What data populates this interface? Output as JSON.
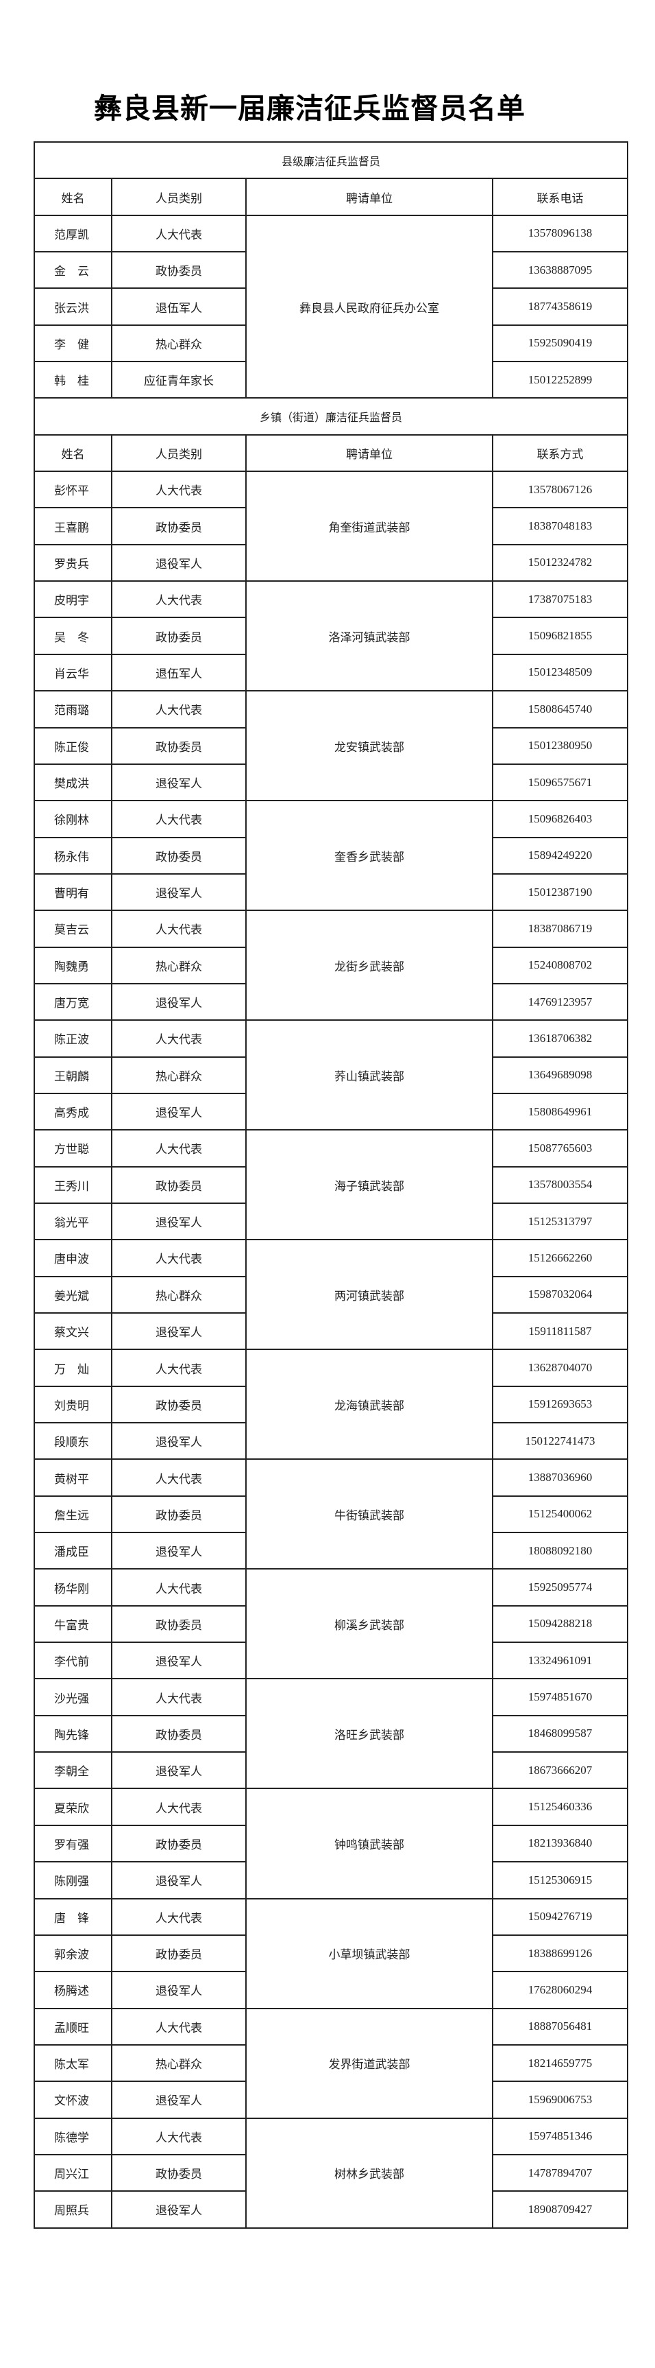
{
  "title": "彝良县新一届廉洁征兵监督员名单",
  "county": {
    "section_title": "县级廉洁征兵监督员",
    "headers": [
      "姓名",
      "人员类别",
      "聘请单位",
      "联系电话"
    ],
    "units": [
      {
        "unit": "彝良县人民政府征兵办公室",
        "members": [
          {
            "name": "范厚凯",
            "category": "人大代表",
            "phone": "13578096138"
          },
          {
            "name": "金　云",
            "category": "政协委员",
            "phone": "13638887095"
          },
          {
            "name": "张云洪",
            "category": "退伍军人",
            "phone": "18774358619"
          },
          {
            "name": "李　健",
            "category": "热心群众",
            "phone": "15925090419"
          },
          {
            "name": "韩　桂",
            "category": "应征青年家长",
            "phone": "15012252899"
          }
        ]
      }
    ]
  },
  "town": {
    "section_title": "乡镇（街道）廉洁征兵监督员",
    "headers": [
      "姓名",
      "人员类别",
      "聘请单位",
      "联系方式"
    ],
    "units": [
      {
        "unit": "角奎街道武装部",
        "members": [
          {
            "name": "彭怀平",
            "category": "人大代表",
            "phone": "13578067126"
          },
          {
            "name": "王喜鹏",
            "category": "政协委员",
            "phone": "18387048183"
          },
          {
            "name": "罗贵兵",
            "category": "退役军人",
            "phone": "15012324782"
          }
        ]
      },
      {
        "unit": "洛泽河镇武装部",
        "members": [
          {
            "name": "皮明宇",
            "category": "人大代表",
            "phone": "17387075183"
          },
          {
            "name": "吴　冬",
            "category": "政协委员",
            "phone": "15096821855"
          },
          {
            "name": "肖云华",
            "category": "退伍军人",
            "phone": "15012348509"
          }
        ]
      },
      {
        "unit": "龙安镇武装部",
        "members": [
          {
            "name": "范雨璐",
            "category": "人大代表",
            "phone": "15808645740"
          },
          {
            "name": "陈正俊",
            "category": "政协委员",
            "phone": "15012380950"
          },
          {
            "name": "樊成洪",
            "category": "退役军人",
            "phone": "15096575671"
          }
        ]
      },
      {
        "unit": "奎香乡武装部",
        "members": [
          {
            "name": "徐刚林",
            "category": "人大代表",
            "phone": "15096826403"
          },
          {
            "name": "杨永伟",
            "category": "政协委员",
            "phone": "15894249220"
          },
          {
            "name": "曹明有",
            "category": "退役军人",
            "phone": "15012387190"
          }
        ]
      },
      {
        "unit": "龙街乡武装部",
        "members": [
          {
            "name": "莫吉云",
            "category": "人大代表",
            "phone": "18387086719"
          },
          {
            "name": "陶魏勇",
            "category": "热心群众",
            "phone": "15240808702"
          },
          {
            "name": "唐万宽",
            "category": "退役军人",
            "phone": "14769123957"
          }
        ]
      },
      {
        "unit": "荞山镇武装部",
        "members": [
          {
            "name": "陈正波",
            "category": "人大代表",
            "phone": "13618706382"
          },
          {
            "name": "王朝麟",
            "category": "热心群众",
            "phone": "13649689098"
          },
          {
            "name": "高秀成",
            "category": "退役军人",
            "phone": "15808649961"
          }
        ]
      },
      {
        "unit": "海子镇武装部",
        "members": [
          {
            "name": "方世聪",
            "category": "人大代表",
            "phone": "15087765603"
          },
          {
            "name": "王秀川",
            "category": "政协委员",
            "phone": "13578003554"
          },
          {
            "name": "翁光平",
            "category": "退役军人",
            "phone": "15125313797"
          }
        ]
      },
      {
        "unit": "两河镇武装部",
        "members": [
          {
            "name": "唐申波",
            "category": "人大代表",
            "phone": "15126662260"
          },
          {
            "name": "姜光斌",
            "category": "热心群众",
            "phone": "15987032064"
          },
          {
            "name": "蔡文兴",
            "category": "退役军人",
            "phone": "15911811587"
          }
        ]
      },
      {
        "unit": "龙海镇武装部",
        "members": [
          {
            "name": "万　灿",
            "category": "人大代表",
            "phone": "13628704070"
          },
          {
            "name": "刘贵明",
            "category": "政协委员",
            "phone": "15912693653"
          },
          {
            "name": "段顺东",
            "category": "退役军人",
            "phone": "150122741473"
          }
        ]
      },
      {
        "unit": "牛街镇武装部",
        "members": [
          {
            "name": "黄树平",
            "category": "人大代表",
            "phone": "13887036960"
          },
          {
            "name": "詹生远",
            "category": "政协委员",
            "phone": "15125400062"
          },
          {
            "name": "潘成臣",
            "category": "退役军人",
            "phone": "18088092180"
          }
        ]
      },
      {
        "unit": "柳溪乡武装部",
        "members": [
          {
            "name": "杨华刚",
            "category": "人大代表",
            "phone": "15925095774"
          },
          {
            "name": "牛富贵",
            "category": "政协委员",
            "phone": "15094288218"
          },
          {
            "name": "李代前",
            "category": "退役军人",
            "phone": "13324961091"
          }
        ]
      },
      {
        "unit": "洛旺乡武装部",
        "members": [
          {
            "name": "沙光强",
            "category": "人大代表",
            "phone": "15974851670"
          },
          {
            "name": "陶先锋",
            "category": "政协委员",
            "phone": "18468099587"
          },
          {
            "name": "李朝全",
            "category": "退役军人",
            "phone": "18673666207"
          }
        ]
      },
      {
        "unit": "钟鸣镇武装部",
        "members": [
          {
            "name": "夏荣欣",
            "category": "人大代表",
            "phone": "15125460336"
          },
          {
            "name": "罗有强",
            "category": "政协委员",
            "phone": "18213936840"
          },
          {
            "name": "陈刚强",
            "category": "退役军人",
            "phone": "15125306915"
          }
        ]
      },
      {
        "unit": "小草坝镇武装部",
        "members": [
          {
            "name": "唐　锋",
            "category": "人大代表",
            "phone": "15094276719"
          },
          {
            "name": "郭余波",
            "category": "政协委员",
            "phone": "18388699126"
          },
          {
            "name": "杨腾述",
            "category": "退役军人",
            "phone": "17628060294"
          }
        ]
      },
      {
        "unit": "发界街道武装部",
        "members": [
          {
            "name": "孟顺旺",
            "category": "人大代表",
            "phone": "18887056481"
          },
          {
            "name": "陈太军",
            "category": "热心群众",
            "phone": "18214659775"
          },
          {
            "name": "文怀波",
            "category": "退役军人",
            "phone": "15969006753"
          }
        ]
      },
      {
        "unit": "树林乡武装部",
        "members": [
          {
            "name": "陈德学",
            "category": "人大代表",
            "phone": "15974851346"
          },
          {
            "name": "周兴江",
            "category": "政协委员",
            "phone": "14787894707"
          },
          {
            "name": "周照兵",
            "category": "退役军人",
            "phone": "18908709427"
          }
        ]
      }
    ]
  }
}
